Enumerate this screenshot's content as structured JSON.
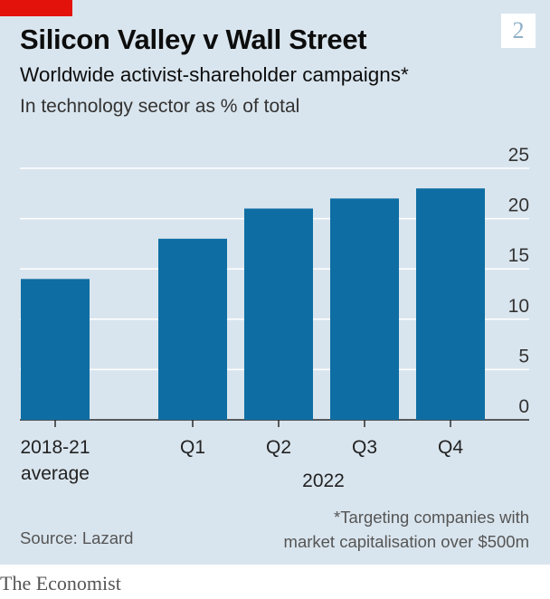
{
  "header": {
    "chart_number": "2",
    "title": "Silicon Valley v Wall Street",
    "subtitle": "Worldwide activist-shareholder campaigns*",
    "unit_note": "In technology sector as % of total"
  },
  "footer": {
    "footnote_line1": "*Targeting companies with",
    "footnote_line2": "market capitalisation over $500m",
    "source": "Source: Lazard",
    "brand": "The Economist"
  },
  "colors": {
    "bar": "#0e6ea3",
    "panel": "#d9e5ee",
    "accent": "#e3120b",
    "grid": "#ffffff"
  },
  "chart_data": {
    "type": "bar",
    "categories": [
      "2018-21 average",
      "Q1",
      "Q2",
      "Q3",
      "Q4"
    ],
    "category_labels": [
      [
        "2018-21",
        "average"
      ],
      [
        "Q1"
      ],
      [
        "Q2"
      ],
      [
        "Q3"
      ],
      [
        "Q4"
      ]
    ],
    "group_label": "2022",
    "values": [
      14,
      18,
      21,
      22,
      23
    ],
    "ylim": [
      0,
      25
    ],
    "yticks": [
      "0",
      "5",
      "10",
      "15",
      "20",
      "25"
    ],
    "axis_position": "right",
    "grid": true
  }
}
